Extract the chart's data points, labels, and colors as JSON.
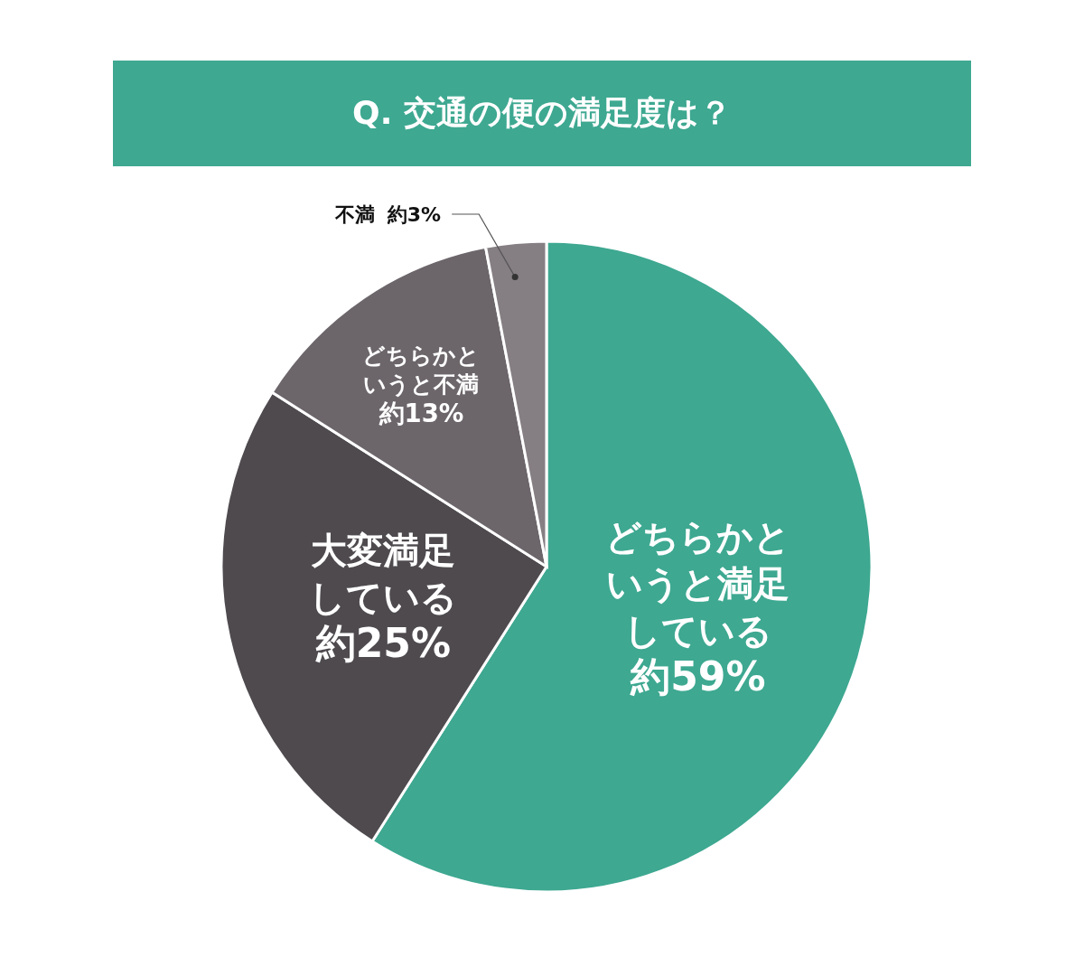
{
  "chart_data": {
    "type": "pie",
    "title": "Q. 交通の便の満足度は？",
    "categories": [
      "どちらかというと満足している",
      "大変満足している",
      "どちらかというと不満",
      "不満"
    ],
    "values": [
      59,
      25,
      13,
      3
    ],
    "colors": [
      "#3ea891",
      "#4e4a4e",
      "#6c666b",
      "#857e83"
    ],
    "value_labels": [
      "約59%",
      "約25%",
      "約13%",
      "約3%"
    ],
    "legend": false
  }
}
